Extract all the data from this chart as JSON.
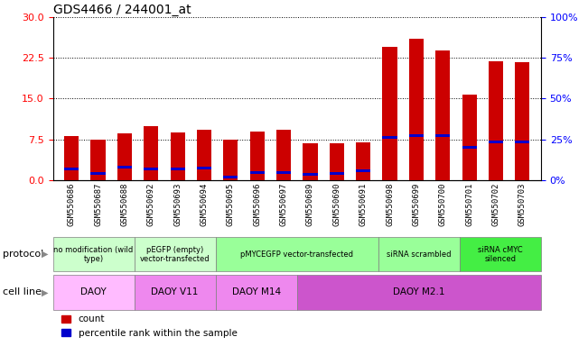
{
  "title": "GDS4466 / 244001_at",
  "samples": [
    "GSM550686",
    "GSM550687",
    "GSM550688",
    "GSM550692",
    "GSM550693",
    "GSM550694",
    "GSM550695",
    "GSM550696",
    "GSM550697",
    "GSM550689",
    "GSM550690",
    "GSM550691",
    "GSM550698",
    "GSM550699",
    "GSM550700",
    "GSM550701",
    "GSM550702",
    "GSM550703"
  ],
  "counts": [
    8.1,
    7.4,
    8.6,
    9.9,
    8.8,
    9.2,
    7.5,
    9.0,
    9.2,
    6.7,
    6.8,
    7.0,
    24.5,
    26.0,
    23.9,
    15.8,
    21.9,
    21.8
  ],
  "percentile_ranks": [
    7.0,
    4.0,
    8.0,
    6.5,
    6.5,
    7.5,
    2.0,
    4.5,
    4.5,
    3.5,
    4.0,
    5.5,
    26.0,
    27.0,
    27.0,
    20.0,
    23.5,
    23.5
  ],
  "bar_color": "#cc0000",
  "pct_color": "#0000cc",
  "ylim_left": [
    0,
    30
  ],
  "ylim_right": [
    0,
    100
  ],
  "yticks_left": [
    0,
    7.5,
    15,
    22.5,
    30
  ],
  "yticks_right": [
    0,
    25,
    50,
    75,
    100
  ],
  "protocol_groups": [
    {
      "label": "no modification (wild\ntype)",
      "start": 0,
      "end": 3,
      "color": "#ccffcc"
    },
    {
      "label": "pEGFP (empty)\nvector-transfected",
      "start": 3,
      "end": 6,
      "color": "#ccffcc"
    },
    {
      "label": "pMYCEGFP vector-transfected",
      "start": 6,
      "end": 12,
      "color": "#99ff99"
    },
    {
      "label": "siRNA scrambled",
      "start": 12,
      "end": 15,
      "color": "#99ff99"
    },
    {
      "label": "siRNA cMYC\nsilenced",
      "start": 15,
      "end": 18,
      "color": "#44ee44"
    }
  ],
  "cellline_groups": [
    {
      "label": "DAOY",
      "start": 0,
      "end": 3,
      "color": "#ffbbff"
    },
    {
      "label": "DAOY V11",
      "start": 3,
      "end": 6,
      "color": "#ee88ee"
    },
    {
      "label": "DAOY M14",
      "start": 6,
      "end": 9,
      "color": "#ee88ee"
    },
    {
      "label": "DAOY M2.1",
      "start": 9,
      "end": 18,
      "color": "#cc55cc"
    }
  ],
  "protocol_label": "protocol",
  "cellline_label": "cell line",
  "legend_count": "count",
  "legend_pct": "percentile rank within the sample",
  "bar_width": 0.55,
  "tick_bg_color": "#dddddd"
}
